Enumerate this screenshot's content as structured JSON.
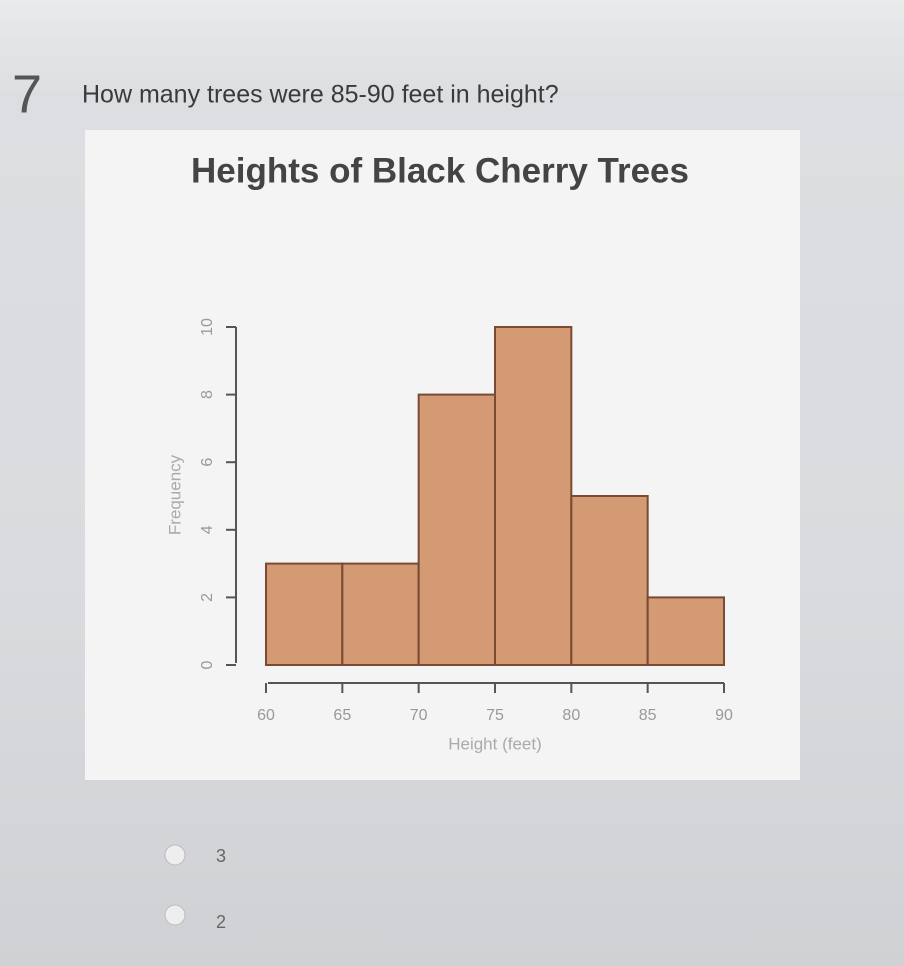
{
  "question": {
    "number": 7,
    "text": "How many trees were 85-90 feet in height?"
  },
  "chart_data": {
    "type": "histogram",
    "title": "Heights of Black Cherry Trees",
    "x_label": "Height (feet)",
    "y_label": "Frequency",
    "bins": [
      60,
      65,
      70,
      75,
      80,
      85,
      90
    ],
    "counts": [
      3,
      3,
      8,
      10,
      5,
      2
    ],
    "color": "#d39a73",
    "edge_color": "#7a4a33",
    "xlim": [
      60,
      90
    ],
    "xticks": [
      60,
      65,
      70,
      75,
      80,
      85,
      90
    ],
    "ylim": [
      0,
      10
    ],
    "yticks": [
      0,
      2,
      4,
      6,
      8,
      10
    ]
  },
  "options": [
    3,
    2
  ]
}
